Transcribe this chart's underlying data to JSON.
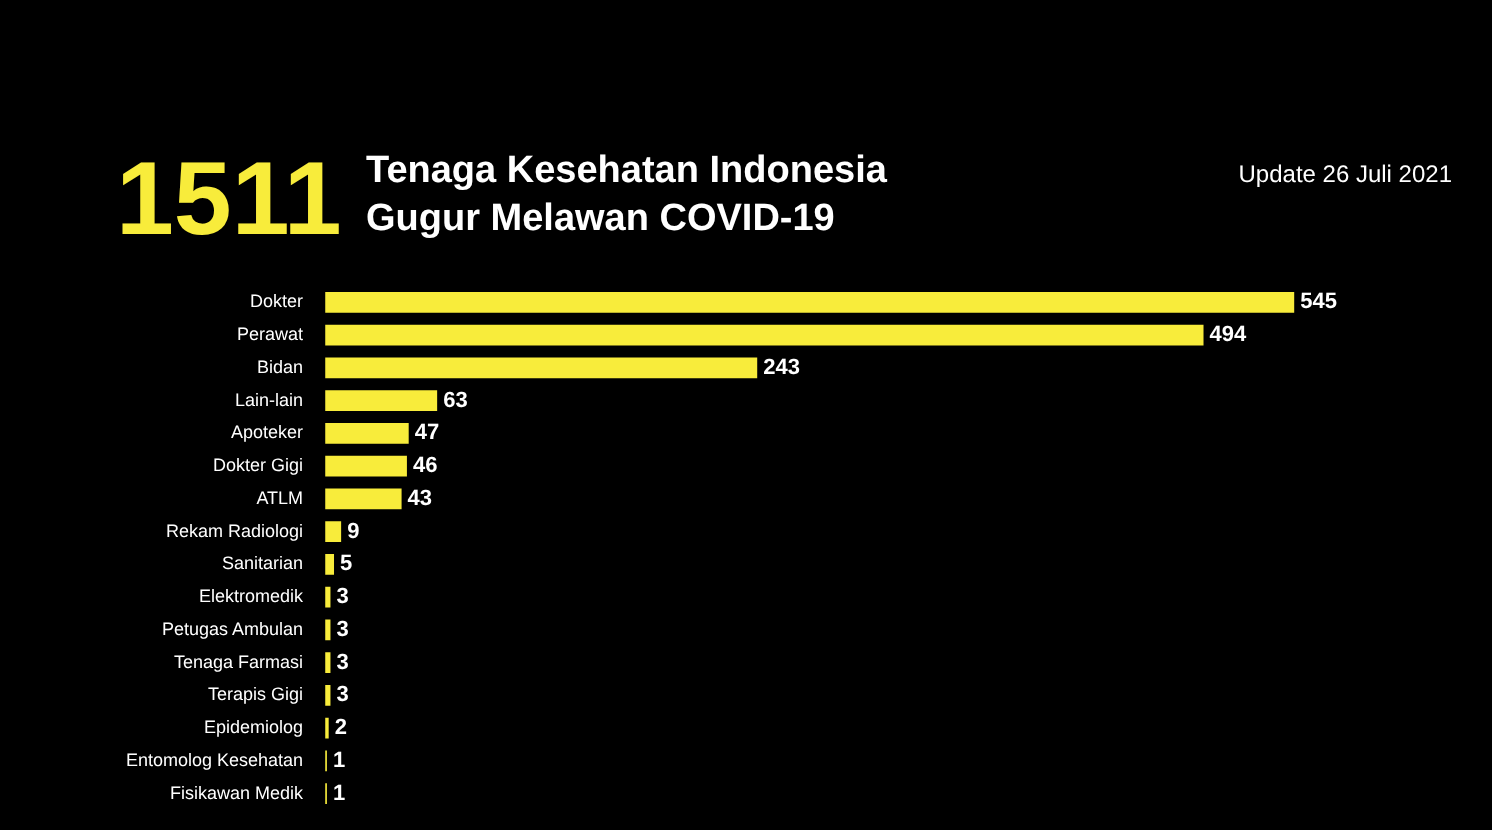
{
  "chart_data": {
    "type": "bar",
    "orientation": "horizontal",
    "title": "Tenaga Kesehatan Indonesia Gugur Melawan COVID-19",
    "subtitle": "Update 26 Juli 2021",
    "annotations": [
      "1511"
    ],
    "categories": [
      "Dokter",
      "Perawat",
      "Bidan",
      "Lain-lain",
      "Apoteker",
      "Dokter Gigi",
      "ATLM",
      "Rekam Radiologi",
      "Sanitarian",
      "Elektromedik",
      "Petugas Ambulan",
      "Tenaga Farmasi",
      "Terapis Gigi",
      "Epidemiolog",
      "Entomolog Kesehatan",
      "Fisikawan Medik"
    ],
    "values": [
      545,
      494,
      243,
      63,
      47,
      46,
      43,
      9,
      5,
      3,
      3,
      3,
      3,
      2,
      1,
      1
    ],
    "color": "#f8ec3b",
    "data_labels": true,
    "legend": false,
    "tick_labels": "y"
  }
}
